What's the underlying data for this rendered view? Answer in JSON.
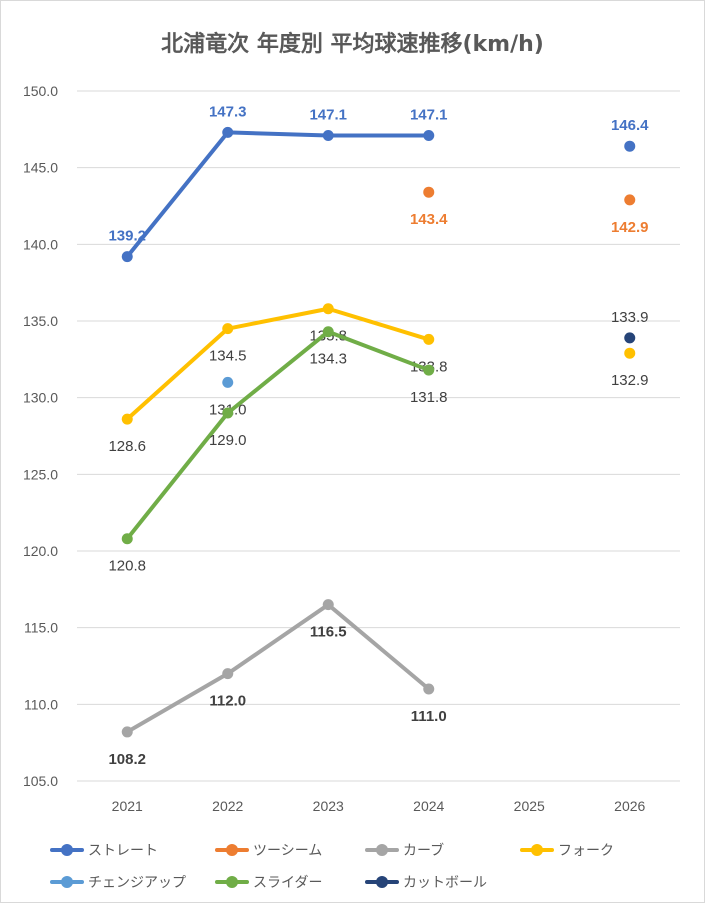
{
  "chart_data": {
    "type": "line",
    "title": "北浦竜次 年度別 平均球速推移(km/h)",
    "xlabel": "",
    "ylabel": "",
    "categories": [
      "2021",
      "2022",
      "2023",
      "2024",
      "2025",
      "2026"
    ],
    "ylim": [
      105,
      150
    ],
    "yticks": [
      "105.0",
      "110.0",
      "115.0",
      "120.0",
      "125.0",
      "130.0",
      "135.0",
      "140.0",
      "145.0",
      "150.0"
    ],
    "grid": true,
    "legend_position": "bottom",
    "series": [
      {
        "name": "ストレート",
        "color": "#4472c4",
        "values": [
          139.2,
          147.3,
          147.1,
          147.1,
          null,
          146.4
        ],
        "labels": [
          "139.2",
          "147.3",
          "147.1",
          "147.1",
          null,
          "146.4"
        ],
        "label_pos": "above",
        "label_color": "#4472c4",
        "label_bold": true
      },
      {
        "name": "ツーシーム",
        "color": "#ed7d31",
        "values": [
          null,
          null,
          null,
          143.4,
          null,
          142.9
        ],
        "labels": [
          null,
          null,
          null,
          "143.4",
          null,
          "142.9"
        ],
        "label_pos": "below",
        "label_color": "#ed7d31",
        "label_bold": true
      },
      {
        "name": "カーブ",
        "color": "#a5a5a5",
        "values": [
          108.2,
          112.0,
          116.5,
          111.0,
          null,
          null
        ],
        "labels": [
          "108.2",
          "112.0",
          "116.5",
          "111.0",
          null,
          null
        ],
        "label_pos": "below",
        "label_color": "#404040",
        "label_bold": true
      },
      {
        "name": "フォーク",
        "color": "#ffc000",
        "values": [
          128.6,
          134.5,
          135.8,
          133.8,
          null,
          132.9
        ],
        "labels": [
          "128.6",
          "134.5",
          "135.8",
          "133.8",
          null,
          "132.9"
        ],
        "label_pos": "below",
        "label_color": "#404040",
        "label_bold": false
      },
      {
        "name": "チェンジアップ",
        "color": "#5b9bd5",
        "values": [
          null,
          131.0,
          null,
          null,
          null,
          null
        ],
        "labels": [
          null,
          "131.0",
          null,
          null,
          null,
          null
        ],
        "label_pos": "below",
        "label_color": "#404040",
        "label_bold": false
      },
      {
        "name": "スライダー",
        "color": "#70ad47",
        "values": [
          120.8,
          129.0,
          134.3,
          131.8,
          null,
          null
        ],
        "labels": [
          "120.8",
          "129.0",
          "134.3",
          "131.8",
          null,
          null
        ],
        "label_pos": "below",
        "label_color": "#404040",
        "label_bold": false
      },
      {
        "name": "カットボール",
        "color": "#264478",
        "values": [
          null,
          null,
          null,
          null,
          null,
          133.9
        ],
        "labels": [
          null,
          null,
          null,
          null,
          null,
          "133.9"
        ],
        "label_pos": "above",
        "label_color": "#404040",
        "label_bold": false
      }
    ]
  }
}
